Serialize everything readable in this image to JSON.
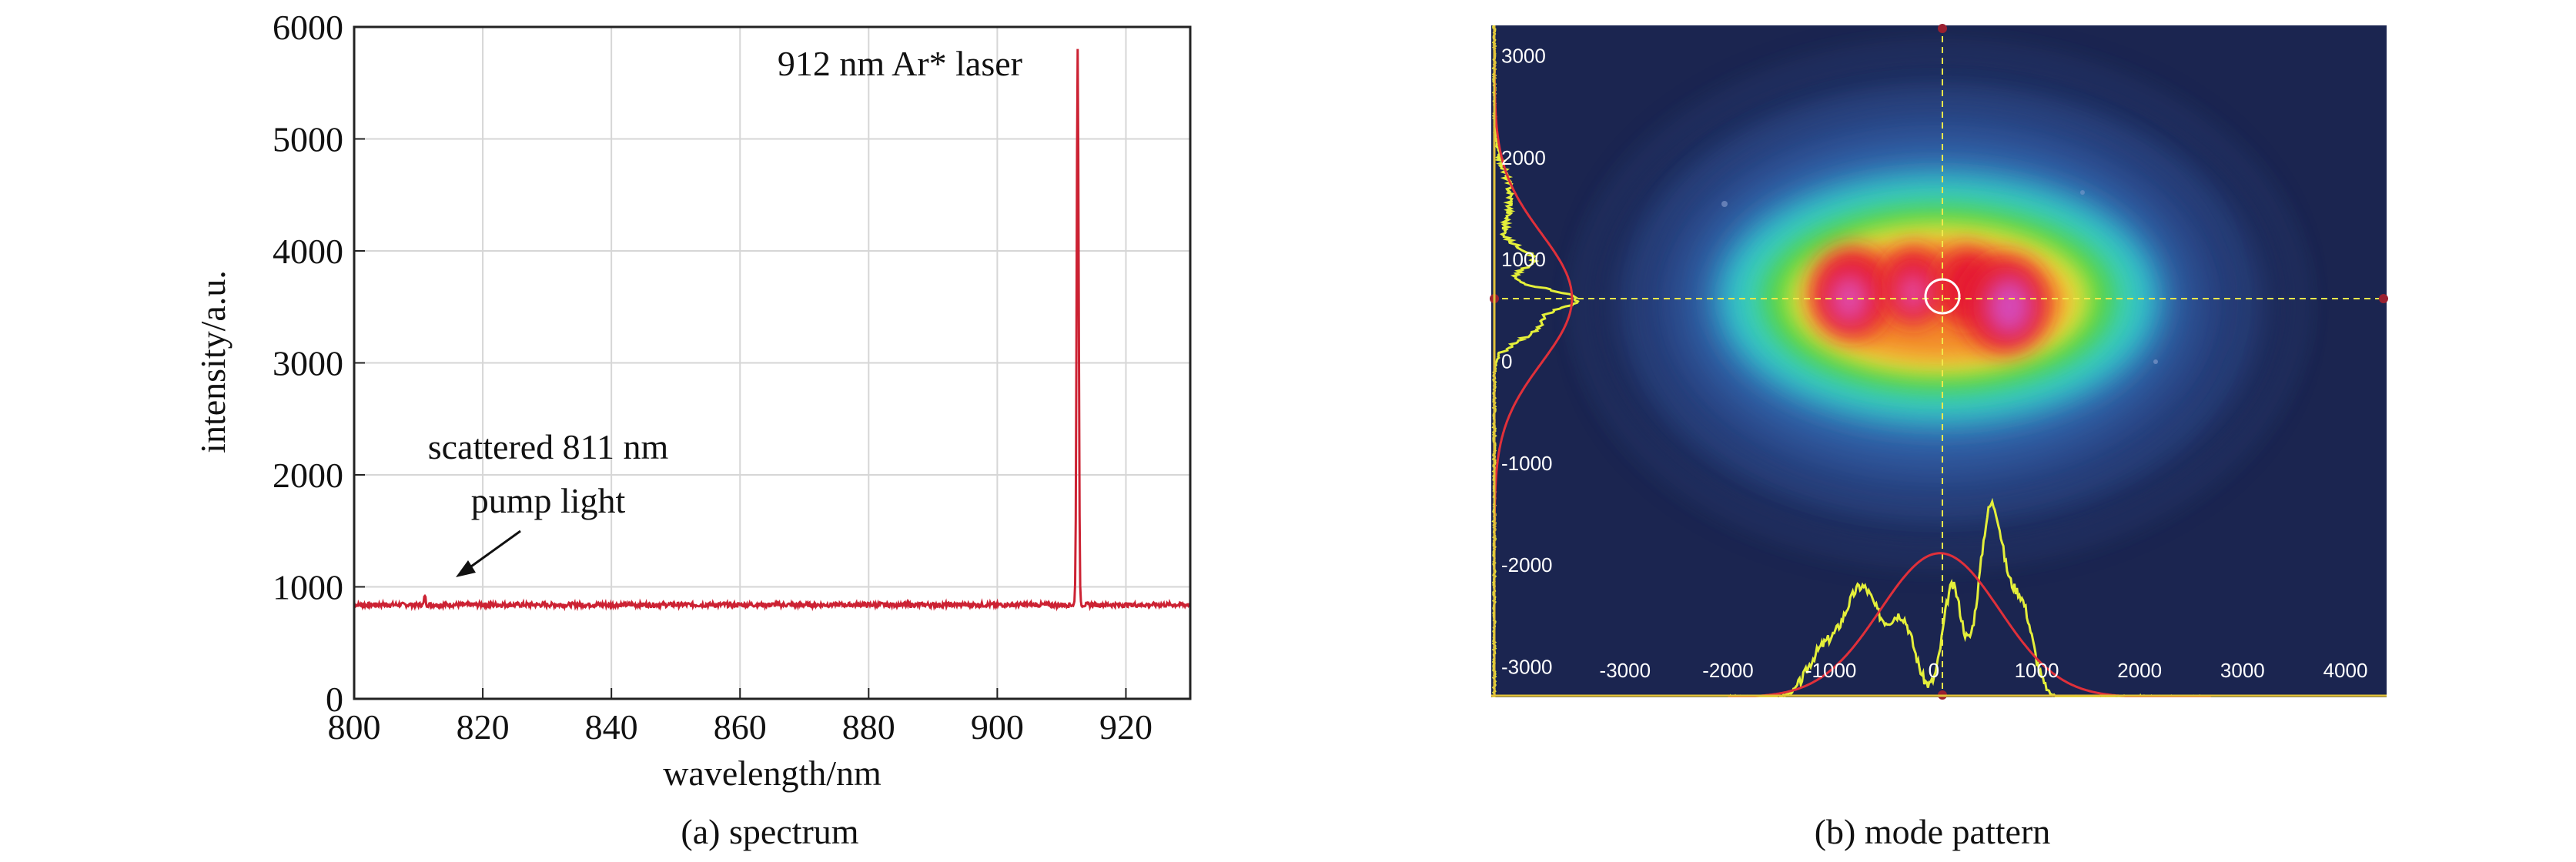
{
  "charts": {
    "left": {
      "caption": "(a) spectrum",
      "chart_data": {
        "type": "line",
        "title": "",
        "xlabel": "wavelength/nm",
        "ylabel": "intensity/a.u.",
        "xlim": [
          800,
          930
        ],
        "ylim": [
          0,
          6000
        ],
        "x_ticks": [
          800,
          820,
          840,
          860,
          880,
          900,
          920
        ],
        "y_ticks": [
          0,
          1000,
          2000,
          3000,
          4000,
          5000,
          6000
        ],
        "grid": true,
        "line_color": "#cc2233",
        "baseline": 840,
        "peaks": [
          {
            "x": 811,
            "y": 930
          },
          {
            "x": 912.5,
            "y": 5820
          }
        ],
        "annotations": {
          "laser": "912 nm Ar* laser",
          "scatter_line1": "scattered 811 nm",
          "scatter_line2": "pump light"
        }
      }
    },
    "right": {
      "caption": "(b) mode pattern",
      "chart_data": {
        "type": "heatmap",
        "title": "",
        "xlabel": "",
        "ylabel": "",
        "x_ticks": [
          -3000,
          -2000,
          -1000,
          0,
          1000,
          2000,
          3000,
          4000
        ],
        "y_ticks": [
          3000,
          2000,
          1000,
          0,
          -1000,
          -2000,
          -3000
        ],
        "xlim": [
          -4300,
          4400
        ],
        "ylim": [
          -3300,
          3300
        ],
        "crosshair": {
          "x": 60,
          "y": 620
        },
        "colors": {
          "background": "#1b2550",
          "profile": "#e4ef3a",
          "fit": "#e0303a",
          "crosshair": "#f2e84a",
          "axis": "#e2c23a"
        },
        "profiles": {
          "horizontal_peaks_x": [
            -700,
            50,
            450,
            600
          ],
          "vertical_peaks_y": [
            1000,
            620,
            350
          ]
        }
      }
    }
  }
}
